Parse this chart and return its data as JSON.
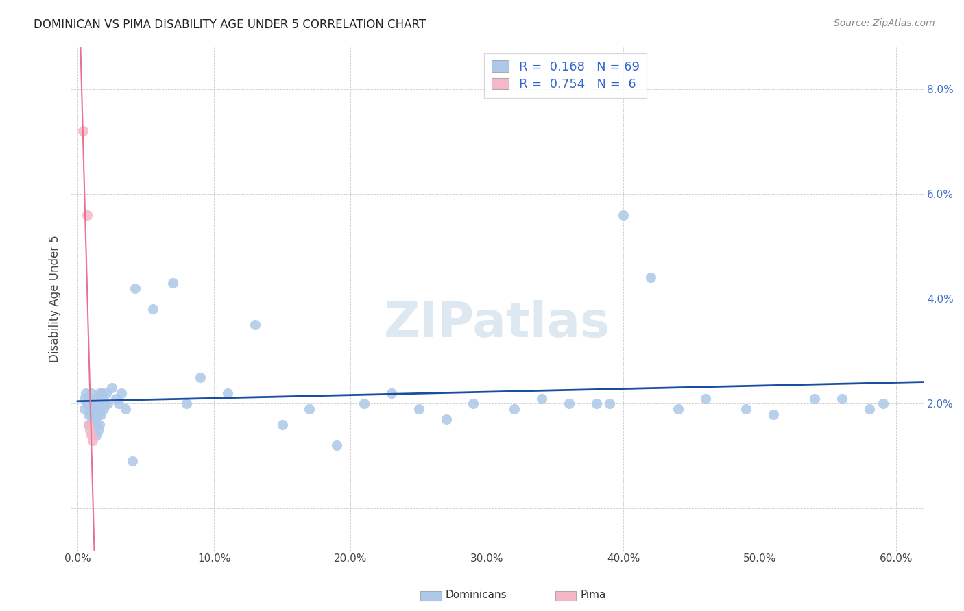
{
  "title": "DOMINICAN VS PIMA DISABILITY AGE UNDER 5 CORRELATION CHART",
  "source": "Source: ZipAtlas.com",
  "ylabel": "Disability Age Under 5",
  "dominican_R": 0.168,
  "dominican_N": 69,
  "pima_R": 0.754,
  "pima_N": 6,
  "dominican_color": "#adc8e8",
  "pima_color": "#f5b8c8",
  "dominican_line_color": "#1a4fa0",
  "pima_line_color": "#e87090",
  "watermark_color": "#dde8f0",
  "title_color": "#222222",
  "source_color": "#888888",
  "ytick_color": "#4472c4",
  "legend_text_color": "#3366cc",
  "dom_x": [
    0.005,
    0.005,
    0.006,
    0.007,
    0.008,
    0.008,
    0.009,
    0.009,
    0.01,
    0.01,
    0.01,
    0.011,
    0.012,
    0.012,
    0.013,
    0.013,
    0.013,
    0.014,
    0.014,
    0.015,
    0.015,
    0.015,
    0.016,
    0.016,
    0.016,
    0.017,
    0.017,
    0.018,
    0.018,
    0.019,
    0.02,
    0.021,
    0.022,
    0.025,
    0.028,
    0.03,
    0.032,
    0.035,
    0.04,
    0.042,
    0.055,
    0.07,
    0.08,
    0.09,
    0.11,
    0.13,
    0.15,
    0.17,
    0.19,
    0.21,
    0.23,
    0.25,
    0.27,
    0.29,
    0.32,
    0.34,
    0.36,
    0.38,
    0.39,
    0.4,
    0.42,
    0.44,
    0.46,
    0.49,
    0.51,
    0.54,
    0.56,
    0.58,
    0.59
  ],
  "dom_y": [
    0.021,
    0.019,
    0.022,
    0.02,
    0.018,
    0.016,
    0.021,
    0.019,
    0.022,
    0.018,
    0.016,
    0.02,
    0.019,
    0.017,
    0.021,
    0.019,
    0.017,
    0.016,
    0.014,
    0.02,
    0.018,
    0.015,
    0.022,
    0.019,
    0.016,
    0.021,
    0.018,
    0.022,
    0.02,
    0.019,
    0.02,
    0.022,
    0.02,
    0.023,
    0.021,
    0.02,
    0.022,
    0.019,
    0.009,
    0.042,
    0.038,
    0.043,
    0.02,
    0.025,
    0.022,
    0.035,
    0.016,
    0.019,
    0.012,
    0.02,
    0.022,
    0.019,
    0.017,
    0.02,
    0.019,
    0.021,
    0.02,
    0.02,
    0.02,
    0.056,
    0.044,
    0.019,
    0.021,
    0.019,
    0.018,
    0.021,
    0.021,
    0.019,
    0.02
  ],
  "pima_x": [
    0.004,
    0.007,
    0.008,
    0.009,
    0.01,
    0.011
  ],
  "pima_y": [
    0.072,
    0.056,
    0.016,
    0.015,
    0.014,
    0.013
  ],
  "xlim": [
    -0.005,
    0.62
  ],
  "ylim": [
    -0.008,
    0.088
  ],
  "xtick_vals": [
    0.0,
    0.1,
    0.2,
    0.3,
    0.4,
    0.5,
    0.6
  ],
  "xtick_labels": [
    "0.0%",
    "10.0%",
    "20.0%",
    "30.0%",
    "40.0%",
    "50.0%",
    "60.0%"
  ],
  "ytick_vals": [
    0.0,
    0.02,
    0.04,
    0.06,
    0.08
  ],
  "ytick_labels": [
    "",
    "2.0%",
    "4.0%",
    "6.0%",
    "8.0%"
  ]
}
